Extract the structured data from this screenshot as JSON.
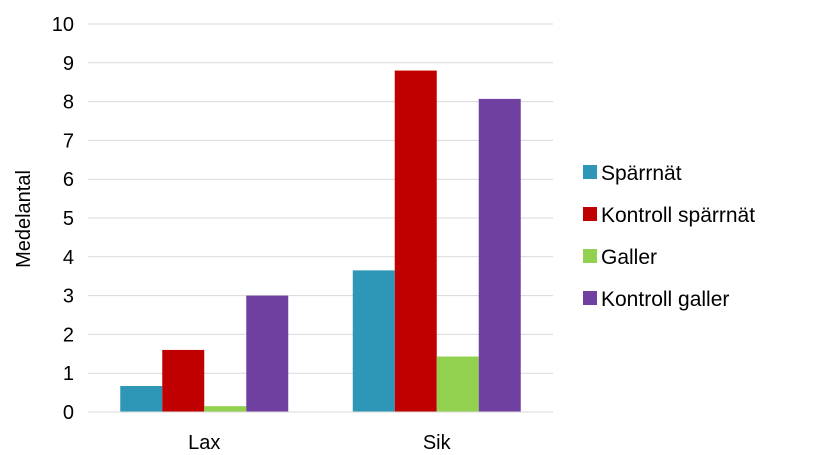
{
  "chart_data": {
    "type": "bar",
    "title": "",
    "xlabel": "",
    "ylabel": "Medelantal",
    "ylim": [
      0,
      10
    ],
    "yticks": [
      0,
      1,
      2,
      3,
      4,
      5,
      6,
      7,
      8,
      9,
      10
    ],
    "categories": [
      "Lax",
      "Sik"
    ],
    "grid": true,
    "legend_position": "right",
    "series": [
      {
        "name": "Spärrnät",
        "color": "#2e97b8",
        "values": [
          0.67,
          3.65
        ]
      },
      {
        "name": "Kontroll spärrnät",
        "color": "#c00000",
        "values": [
          1.6,
          8.8
        ]
      },
      {
        "name": "Galler",
        "color": "#92d050",
        "values": [
          0.15,
          1.43
        ]
      },
      {
        "name": "Kontroll galler",
        "color": "#7040a0",
        "values": [
          3.0,
          8.07
        ]
      }
    ]
  }
}
